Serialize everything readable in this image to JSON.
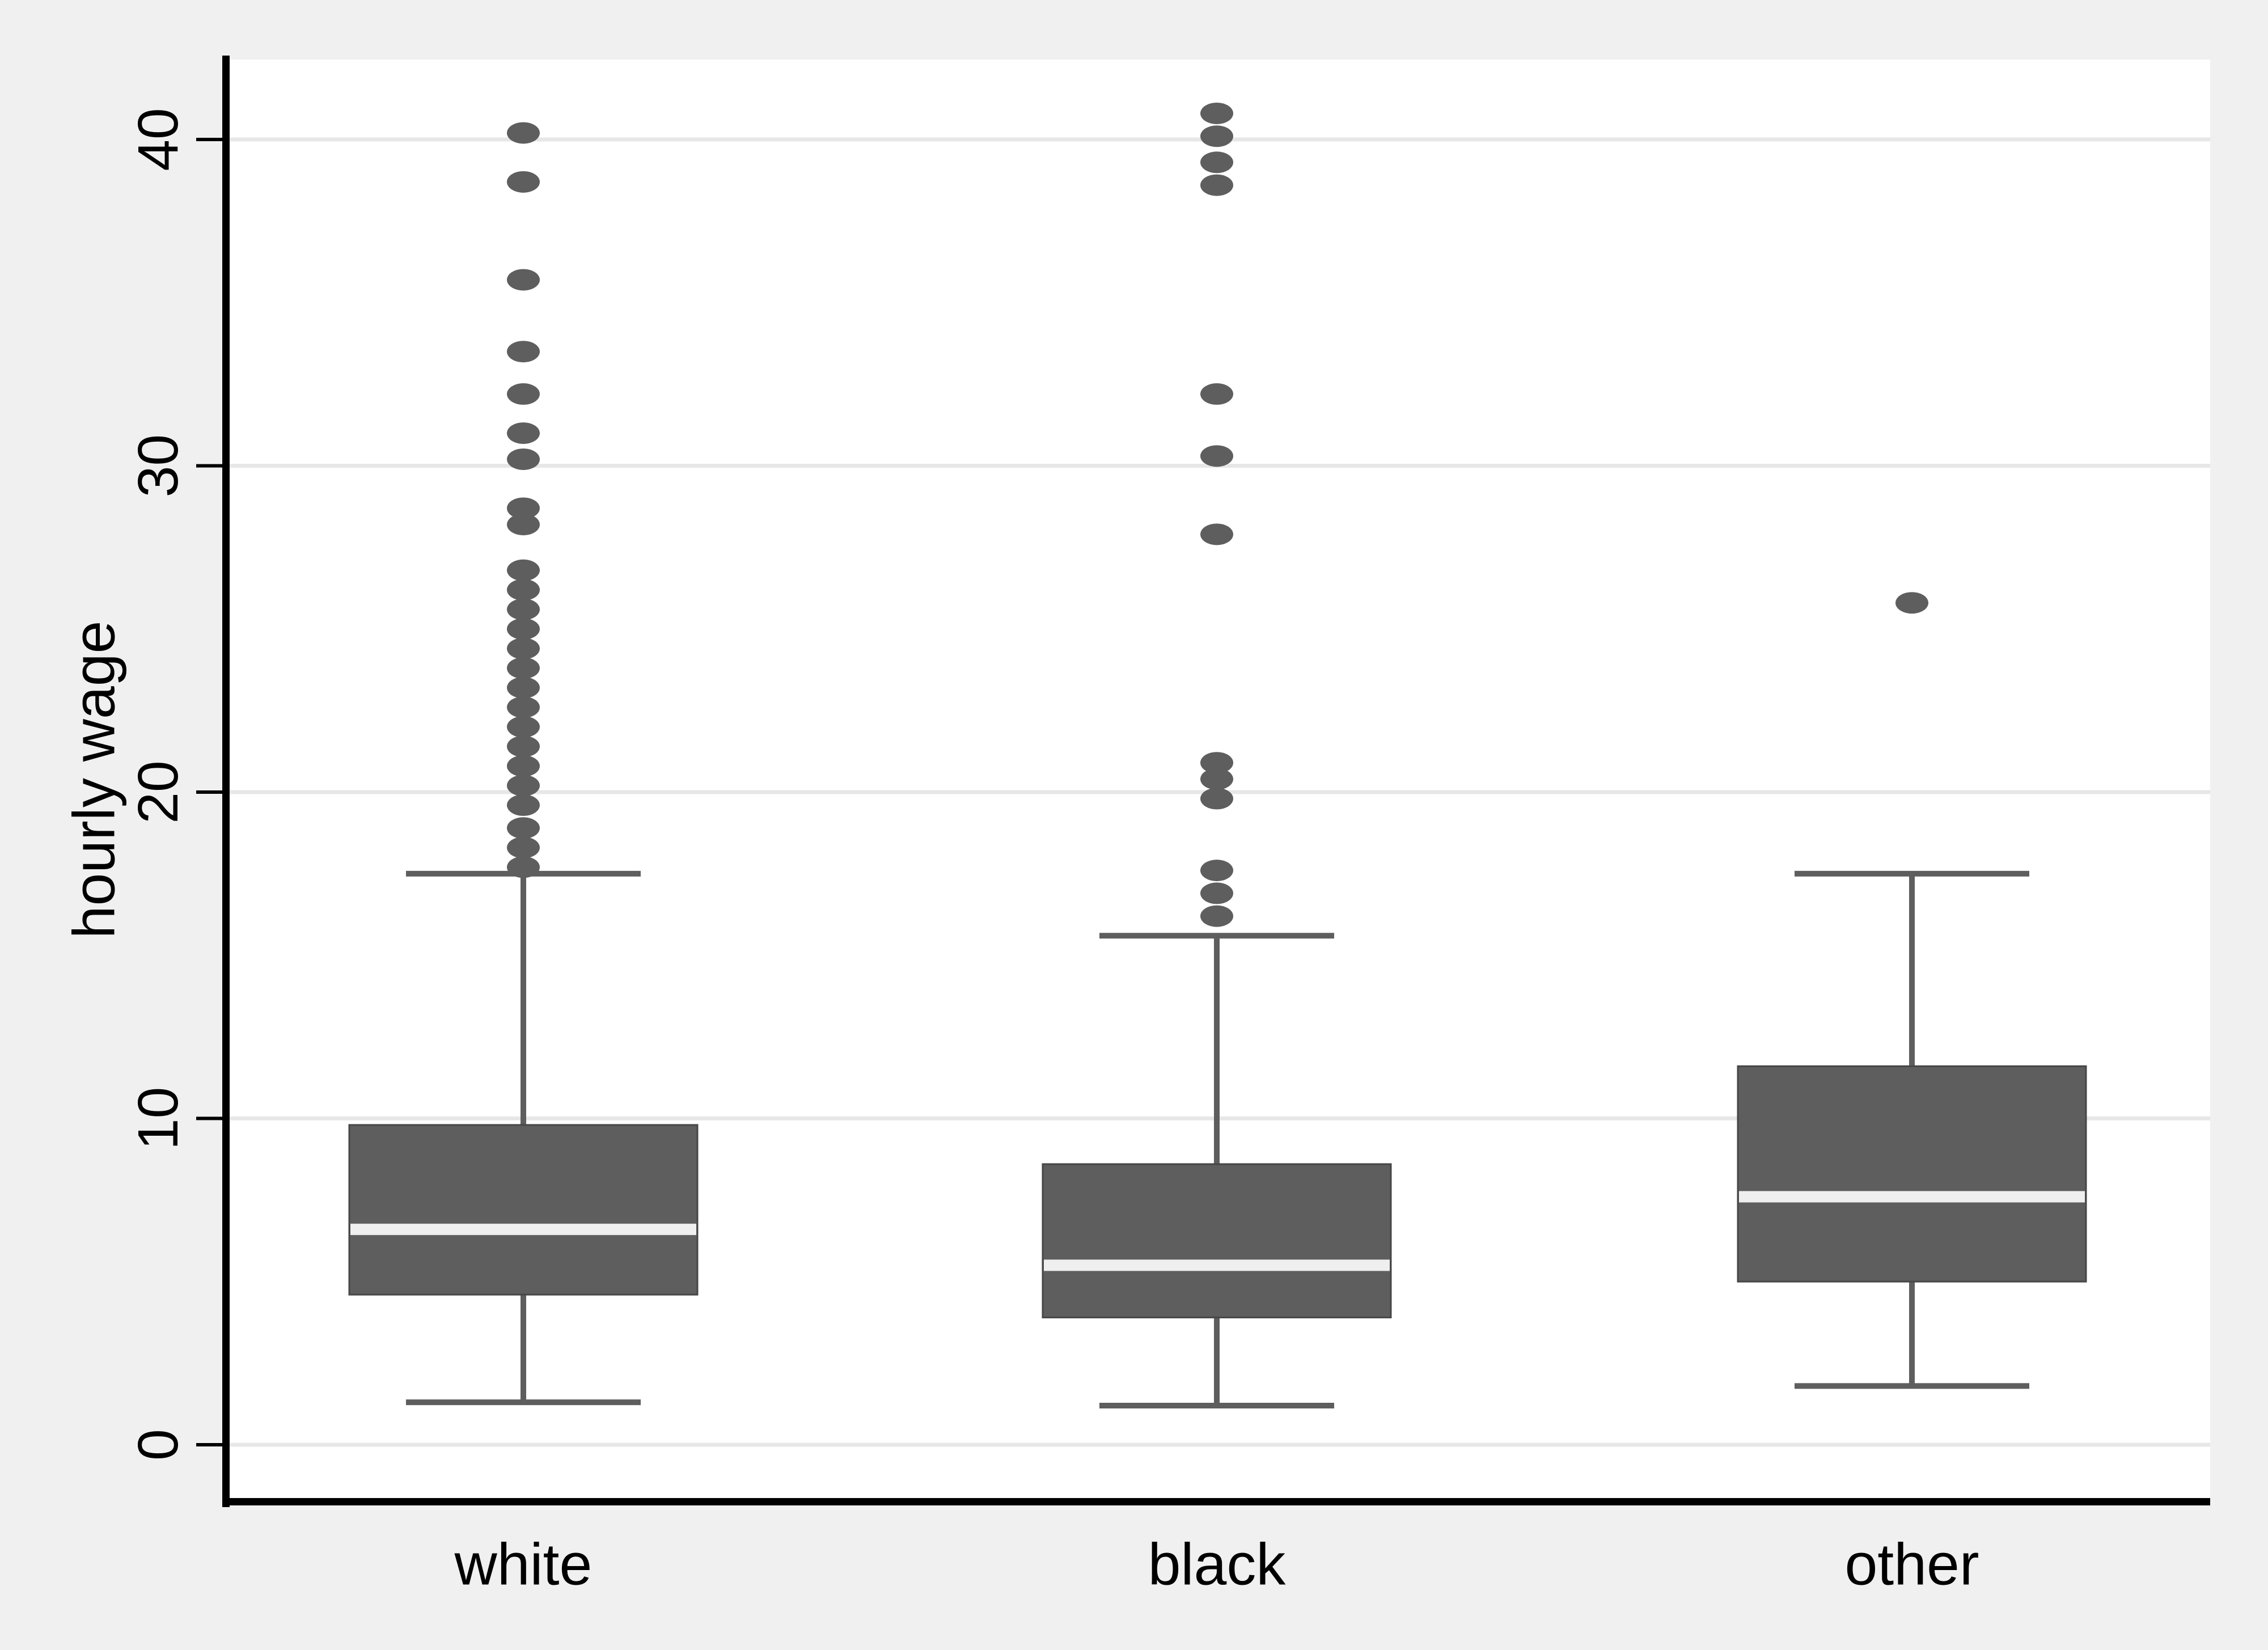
{
  "chart_data": {
    "type": "box",
    "title": "",
    "xlabel": "",
    "ylabel": "hourly wage",
    "categories": [
      "white",
      "black",
      "other"
    ],
    "y_ticks": [
      0,
      10,
      20,
      30,
      40
    ],
    "y_tick_labels": [
      "0",
      "10",
      "20",
      "30",
      "40"
    ],
    "ylim": [
      -1.7,
      42.5
    ],
    "grid": true,
    "legend": "none",
    "marker": "filled-circle",
    "series": [
      {
        "name": "white",
        "q1": 4.6,
        "median": 6.6,
        "q3": 9.8,
        "whisker_low": 1.3,
        "whisker_high": 17.5,
        "outliers": [
          17.7,
          18.3,
          18.9,
          19.6,
          20.2,
          20.8,
          21.4,
          22.0,
          22.6,
          23.2,
          23.8,
          24.4,
          25.0,
          25.6,
          26.2,
          26.8,
          28.2,
          28.7,
          30.2,
          31.0,
          32.2,
          33.5,
          35.7,
          38.7,
          40.2
        ]
      },
      {
        "name": "black",
        "q1": 3.9,
        "median": 5.5,
        "q3": 8.6,
        "whisker_low": 1.2,
        "whisker_high": 15.6,
        "outliers": [
          16.2,
          16.9,
          17.6,
          19.8,
          20.4,
          20.9,
          27.9,
          30.3,
          32.2,
          38.6,
          39.3,
          40.1,
          40.8
        ]
      },
      {
        "name": "other",
        "q1": 5.0,
        "median": 7.6,
        "q3": 11.6,
        "whisker_low": 1.8,
        "whisker_high": 17.5,
        "outliers": [
          25.8
        ]
      }
    ],
    "colors": {
      "background": "#f0f0f0",
      "plot_background": "#ffffff",
      "gridline": "#e7e7e7",
      "box_fill": "#5e5e5e",
      "box_border": "#474747",
      "median_stripe": "#efefef",
      "whisker": "#5e5e5e",
      "outlier": "#5e5e5e",
      "axis_line": "#000000",
      "text": "#000000"
    }
  }
}
